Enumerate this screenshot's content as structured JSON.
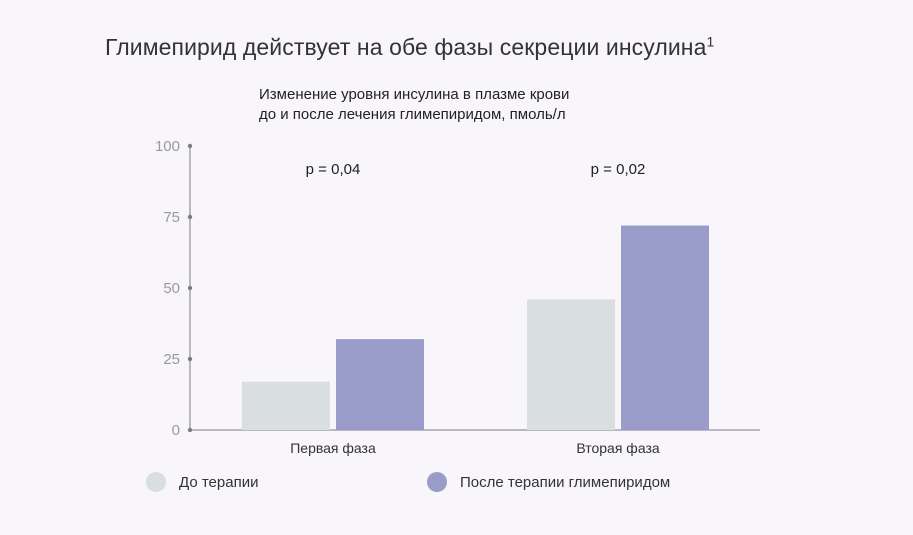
{
  "title": "Глимепирид действует на обе фазы секреции инсулина",
  "title_sup": "1",
  "subtitle_line1": "Изменение уровня инсулина в плазме крови",
  "subtitle_line2": "до и после лечения глимепиридом, пмоль/л",
  "chart_data": {
    "type": "bar",
    "categories": [
      "Первая фаза",
      "Вторая фаза"
    ],
    "series": [
      {
        "name": "До терапии",
        "values": [
          17,
          46
        ],
        "color": "#d9dfdf"
      },
      {
        "name": "После терапии глимепиридом",
        "values": [
          32,
          72
        ],
        "color": "#999cc8"
      }
    ],
    "p_values": [
      "p = 0,04",
      "p = 0,02"
    ],
    "ylim": [
      0,
      100
    ],
    "yticks": [
      0,
      25,
      50,
      75,
      100
    ],
    "grid": false,
    "legend_position": "bottom-left"
  }
}
